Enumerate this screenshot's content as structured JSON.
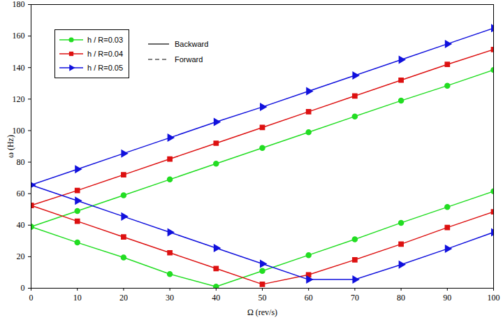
{
  "chart_data": {
    "type": "line",
    "xlabel": "Ω (rev/s)",
    "ylabel": "ω (Hz)",
    "x": [
      0,
      10,
      20,
      30,
      40,
      50,
      60,
      70,
      80,
      90,
      100
    ],
    "xlim": [
      0,
      100
    ],
    "ylim": [
      0,
      180
    ],
    "xticks": [
      0,
      10,
      20,
      30,
      40,
      50,
      60,
      70,
      80,
      90,
      100
    ],
    "yticks": [
      0,
      20,
      40,
      60,
      80,
      100,
      120,
      140,
      160,
      180
    ],
    "grid": false,
    "legend": "top-left",
    "series": [
      {
        "name": "h / R=0.03",
        "color": "#22dd22",
        "marker": "circle",
        "line_style": "solid",
        "values": [
          39,
          49,
          59,
          69,
          79,
          89,
          99,
          109,
          119,
          128.5,
          138.5
        ]
      },
      {
        "name": "h / R=0.03",
        "color": "#22dd22",
        "marker": "circle",
        "line_style": "solid",
        "values": [
          39,
          29,
          19.5,
          9,
          1,
          11,
          21,
          31,
          41.5,
          51.5,
          61.5
        ]
      },
      {
        "name": "h / R=0.04",
        "color": "#dd1111",
        "marker": "square",
        "line_style": "solid",
        "values": [
          52.5,
          62,
          72,
          82,
          92,
          102,
          112,
          122,
          132,
          142,
          151.5
        ]
      },
      {
        "name": "h / R=0.04",
        "color": "#dd1111",
        "marker": "square",
        "line_style": "solid",
        "values": [
          52.5,
          42.5,
          32.5,
          22.5,
          12.5,
          2.5,
          8.5,
          18,
          28,
          38.5,
          48.5
        ]
      },
      {
        "name": "h / R=0.05",
        "color": "#1111dd",
        "marker": "triangle-right",
        "line_style": "solid",
        "values": [
          65.5,
          75.5,
          85.5,
          95.5,
          105.5,
          115,
          125,
          135,
          145,
          155,
          165
        ]
      },
      {
        "name": "h / R=0.05",
        "color": "#1111dd",
        "marker": "triangle-right",
        "line_style": "solid",
        "values": [
          65.5,
          55.5,
          45.5,
          35.5,
          25.5,
          15.5,
          5.5,
          5.5,
          15,
          25,
          35.5
        ]
      }
    ],
    "line_style_key": [
      {
        "label": "Backward",
        "line_style": "solid"
      },
      {
        "label": "Forward",
        "line_style": "dashed"
      }
    ]
  }
}
